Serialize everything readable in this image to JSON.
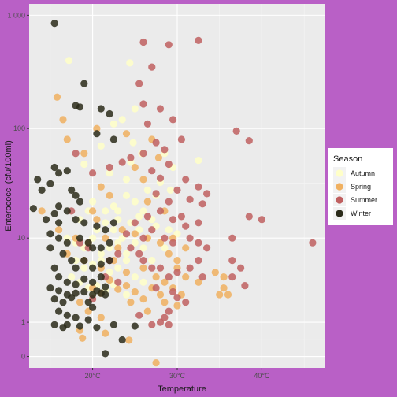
{
  "chart_data": {
    "type": "scatter",
    "title": "",
    "xlabel": "Temperature",
    "ylabel": "Enterococci (cfu/100ml)",
    "x_scale": "linear",
    "y_scale": "log10(y+1)",
    "xlim": [
      12.5,
      47.5
    ],
    "ylim_transformed": [
      -0.1,
      3.1
    ],
    "x_ticks": [
      20,
      30,
      40
    ],
    "x_tick_labels": [
      "20°C",
      "30°C",
      "40°C"
    ],
    "y_ticks": [
      0,
      1,
      10,
      100,
      1000
    ],
    "y_tick_labels": [
      "0",
      "1",
      "10",
      "100",
      "1 000"
    ],
    "grid": true,
    "legend": {
      "title": "Season",
      "placement": "right",
      "entries": [
        "Autumn",
        "Spring",
        "Summer",
        "Winter"
      ]
    },
    "colors": {
      "Autumn": "#ffffc8",
      "Spring": "#f0b060",
      "Summer": "#c06060",
      "Winter": "#2b2b1a",
      "panel": "#ebebeb",
      "background": "#b960c6"
    },
    "series": [
      {
        "name": "Autumn",
        "points": [
          [
            17.2,
            400
          ],
          [
            24.4,
            380
          ],
          [
            25.0,
            150
          ],
          [
            22.5,
            110
          ],
          [
            23.5,
            120
          ],
          [
            24.8,
            75
          ],
          [
            21.0,
            70
          ],
          [
            24.5,
            50
          ],
          [
            25.8,
            60
          ],
          [
            28.5,
            60
          ],
          [
            29.5,
            45
          ],
          [
            32.5,
            52
          ],
          [
            19.0,
            48
          ],
          [
            22.0,
            40
          ],
          [
            24.0,
            35
          ],
          [
            26.5,
            28
          ],
          [
            27.5,
            25
          ],
          [
            28.0,
            33
          ],
          [
            29.2,
            28
          ],
          [
            20.0,
            22
          ],
          [
            21.5,
            18
          ],
          [
            22.5,
            20
          ],
          [
            23.0,
            15
          ],
          [
            24.0,
            25
          ],
          [
            25.0,
            22
          ],
          [
            26.0,
            18
          ],
          [
            27.0,
            15
          ],
          [
            18.5,
            15
          ],
          [
            19.5,
            18
          ],
          [
            20.5,
            12
          ],
          [
            21.5,
            14
          ],
          [
            22.5,
            12
          ],
          [
            23.5,
            10
          ],
          [
            24.5,
            14
          ],
          [
            25.5,
            12
          ],
          [
            26.5,
            10
          ],
          [
            27.5,
            13
          ],
          [
            17.0,
            10
          ],
          [
            18.0,
            9
          ],
          [
            19.0,
            8
          ],
          [
            20.0,
            10
          ],
          [
            21.0,
            7
          ],
          [
            22.0,
            8
          ],
          [
            23.0,
            9
          ],
          [
            24.0,
            7
          ],
          [
            25.0,
            9
          ],
          [
            26.0,
            8
          ],
          [
            18.0,
            6
          ],
          [
            19.0,
            5
          ],
          [
            20.0,
            5.5
          ],
          [
            21.0,
            6
          ],
          [
            22.0,
            4.5
          ],
          [
            23.0,
            5
          ],
          [
            24.0,
            6
          ],
          [
            25.0,
            4
          ],
          [
            17.5,
            4
          ],
          [
            18.5,
            3.5
          ],
          [
            19.5,
            3
          ],
          [
            20.5,
            3.2
          ],
          [
            21.5,
            2.8
          ],
          [
            22.5,
            3.3
          ],
          [
            20.0,
            2.5
          ],
          [
            24.0,
            2.5
          ],
          [
            26.0,
            3.5
          ],
          [
            27.0,
            6
          ],
          [
            28.5,
            8
          ],
          [
            29.0,
            12
          ],
          [
            30.0,
            11
          ],
          [
            25.5,
            16
          ],
          [
            23.0,
            18
          ]
        ]
      },
      {
        "name": "Spring",
        "points": [
          [
            15.8,
            190
          ],
          [
            14.0,
            18
          ],
          [
            16.5,
            120
          ],
          [
            17.0,
            80
          ],
          [
            19.0,
            60
          ],
          [
            20.5,
            100
          ],
          [
            24.0,
            90
          ],
          [
            27.0,
            80
          ],
          [
            25.0,
            45
          ],
          [
            26.0,
            35
          ],
          [
            27.8,
            55
          ],
          [
            21.0,
            30
          ],
          [
            22.0,
            25
          ],
          [
            20.0,
            18
          ],
          [
            20.5,
            15
          ],
          [
            23.5,
            12
          ],
          [
            26.5,
            22
          ],
          [
            28.5,
            18
          ],
          [
            16.0,
            12
          ],
          [
            18.0,
            10
          ],
          [
            19.5,
            9
          ],
          [
            21.5,
            10
          ],
          [
            23.0,
            8
          ],
          [
            25.0,
            11
          ],
          [
            26.5,
            10
          ],
          [
            28.0,
            9
          ],
          [
            29.0,
            7
          ],
          [
            30.0,
            6
          ],
          [
            31.0,
            8
          ],
          [
            29.5,
            10
          ],
          [
            17.0,
            7
          ],
          [
            19.0,
            6
          ],
          [
            21.0,
            5
          ],
          [
            22.5,
            6
          ],
          [
            24.0,
            4.5
          ],
          [
            26.0,
            5
          ],
          [
            27.5,
            4
          ],
          [
            28.5,
            3.5
          ],
          [
            30.0,
            5
          ],
          [
            31.0,
            4
          ],
          [
            32.5,
            3.5
          ],
          [
            30.5,
            2.5
          ],
          [
            29.5,
            3
          ],
          [
            28.0,
            2.5
          ],
          [
            27.0,
            3
          ],
          [
            26.0,
            2.2
          ],
          [
            25.0,
            2.7
          ],
          [
            24.0,
            3.2
          ],
          [
            23.0,
            2.9
          ],
          [
            22.0,
            3.7
          ],
          [
            21.0,
            2.6
          ],
          [
            20.0,
            3.0
          ],
          [
            18.5,
            2.0
          ],
          [
            19.5,
            1.5
          ],
          [
            21.0,
            1.2
          ],
          [
            24.5,
            2.0
          ],
          [
            26.5,
            1.5
          ],
          [
            28.5,
            2.0
          ],
          [
            30.0,
            1.8
          ],
          [
            35.5,
            4
          ],
          [
            34.5,
            4.5
          ],
          [
            35.0,
            2.5
          ],
          [
            35.5,
            3.0
          ],
          [
            36.0,
            2.5
          ],
          [
            18.5,
            0.7
          ],
          [
            21.5,
            0.6
          ],
          [
            18.8,
            0.45
          ],
          [
            24.3,
            0.39
          ],
          [
            27.5,
            -0.12
          ]
        ]
      },
      {
        "name": "Summer",
        "points": [
          [
            26.0,
            580
          ],
          [
            27.0,
            350
          ],
          [
            29.0,
            550
          ],
          [
            32.5,
            600
          ],
          [
            25.5,
            250
          ],
          [
            26.0,
            165
          ],
          [
            28.0,
            150
          ],
          [
            29.5,
            120
          ],
          [
            26.5,
            110
          ],
          [
            27.5,
            75
          ],
          [
            28.5,
            65
          ],
          [
            30.5,
            80
          ],
          [
            26.0,
            60
          ],
          [
            24.5,
            55
          ],
          [
            29.0,
            48
          ],
          [
            27.0,
            42
          ],
          [
            28.0,
            36
          ],
          [
            30.0,
            28
          ],
          [
            31.0,
            35
          ],
          [
            27.5,
            26
          ],
          [
            29.0,
            22
          ],
          [
            31.5,
            23
          ],
          [
            33.0,
            21
          ],
          [
            37.0,
            95
          ],
          [
            38.5,
            78
          ],
          [
            28.0,
            18
          ],
          [
            29.5,
            15
          ],
          [
            30.5,
            16
          ],
          [
            31.0,
            13
          ],
          [
            32.5,
            14
          ],
          [
            27.0,
            12
          ],
          [
            26.0,
            10
          ],
          [
            25.0,
            14
          ],
          [
            24.0,
            11
          ],
          [
            28.5,
            10
          ],
          [
            29.5,
            9
          ],
          [
            31.5,
            10
          ],
          [
            32.5,
            9
          ],
          [
            33.5,
            8
          ],
          [
            36.5,
            10
          ],
          [
            38.5,
            16
          ],
          [
            40.0,
            15
          ],
          [
            46.0,
            9
          ],
          [
            36.5,
            6
          ],
          [
            37.5,
            5
          ],
          [
            36.5,
            4
          ],
          [
            38.0,
            3.2
          ],
          [
            23.0,
            7
          ],
          [
            24.5,
            8
          ],
          [
            25.5,
            7
          ],
          [
            26.0,
            6
          ],
          [
            27.0,
            5
          ],
          [
            28.0,
            5
          ],
          [
            29.0,
            4
          ],
          [
            30.0,
            4.5
          ],
          [
            31.5,
            5
          ],
          [
            32.5,
            6
          ],
          [
            33.0,
            4
          ],
          [
            22.0,
            6
          ],
          [
            21.5,
            4
          ],
          [
            23.0,
            3.5
          ],
          [
            27.5,
            3.0
          ],
          [
            29.5,
            2.7
          ],
          [
            30.0,
            2.3
          ],
          [
            31.0,
            2.0
          ],
          [
            29.0,
            1.5
          ],
          [
            28.5,
            1.2
          ],
          [
            28.0,
            1.0
          ],
          [
            27.0,
            0.9
          ],
          [
            25.5,
            1.3
          ],
          [
            20.0,
            2.2
          ],
          [
            19.5,
            8
          ],
          [
            18.5,
            9
          ],
          [
            17.5,
            18
          ],
          [
            18.0,
            60
          ],
          [
            20.0,
            40
          ],
          [
            22.0,
            45
          ],
          [
            23.5,
            50
          ],
          [
            32.5,
            30
          ],
          [
            33.5,
            26
          ],
          [
            26.5,
            16
          ],
          [
            29.0,
            0.9
          ]
        ]
      },
      {
        "name": "Winter",
        "points": [
          [
            15.5,
            850
          ],
          [
            19.0,
            250
          ],
          [
            18.0,
            160
          ],
          [
            18.5,
            155
          ],
          [
            21.0,
            150
          ],
          [
            22.0,
            135
          ],
          [
            20.5,
            90
          ],
          [
            22.5,
            80
          ],
          [
            15.5,
            45
          ],
          [
            16.0,
            40
          ],
          [
            17.0,
            42
          ],
          [
            13.5,
            35
          ],
          [
            14.0,
            28
          ],
          [
            15.0,
            32
          ],
          [
            17.5,
            28
          ],
          [
            18.0,
            25
          ],
          [
            18.5,
            22
          ],
          [
            16.0,
            20
          ],
          [
            17.0,
            18
          ],
          [
            13.0,
            19
          ],
          [
            15.5,
            17
          ],
          [
            14.5,
            15
          ],
          [
            16.0,
            14
          ],
          [
            18.0,
            15
          ],
          [
            19.0,
            14
          ],
          [
            20.5,
            13
          ],
          [
            21.5,
            12
          ],
          [
            22.5,
            14
          ],
          [
            15.0,
            11
          ],
          [
            16.0,
            10
          ],
          [
            17.0,
            9
          ],
          [
            18.5,
            10
          ],
          [
            19.5,
            9
          ],
          [
            20.0,
            8
          ],
          [
            21.0,
            8
          ],
          [
            15.0,
            8
          ],
          [
            16.5,
            7
          ],
          [
            17.5,
            6
          ],
          [
            18.0,
            5
          ],
          [
            19.0,
            6
          ],
          [
            20.0,
            5
          ],
          [
            21.0,
            5.5
          ],
          [
            22.0,
            6
          ],
          [
            15.5,
            5
          ],
          [
            16.0,
            4
          ],
          [
            17.0,
            3.5
          ],
          [
            18.0,
            3.3
          ],
          [
            19.0,
            3.8
          ],
          [
            20.0,
            3.5
          ],
          [
            21.0,
            4
          ],
          [
            15.0,
            3
          ],
          [
            16.0,
            2.8
          ],
          [
            17.0,
            2.5
          ],
          [
            18.0,
            2.6
          ],
          [
            19.0,
            2.7
          ],
          [
            20.0,
            2.5
          ],
          [
            21.0,
            2.6
          ],
          [
            21.5,
            2.5
          ],
          [
            15.5,
            2.2
          ],
          [
            16.5,
            2.0
          ],
          [
            17.5,
            2.3
          ],
          [
            20.5,
            2.8
          ],
          [
            21.5,
            3.1
          ],
          [
            16.0,
            1.5
          ],
          [
            17.0,
            1.3
          ],
          [
            18.0,
            1.2
          ],
          [
            19.5,
            1.1
          ],
          [
            15.5,
            0.9
          ],
          [
            16.5,
            0.8
          ],
          [
            17.0,
            0.9
          ],
          [
            18.5,
            0.85
          ],
          [
            20.5,
            0.8
          ],
          [
            22.5,
            0.9
          ],
          [
            25.0,
            0.85
          ],
          [
            23.5,
            0.4
          ],
          [
            21.5,
            0.06
          ],
          [
            19.5,
            2.0
          ],
          [
            20.0,
            1.7
          ],
          [
            22.0,
            9
          ]
        ]
      }
    ]
  }
}
